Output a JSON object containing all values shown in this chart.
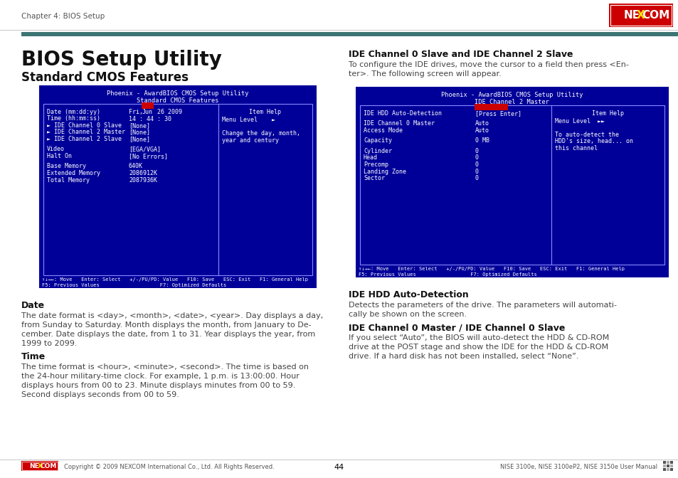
{
  "page_bg": "#ffffff",
  "header_text": "Chapter 4: BIOS Setup",
  "footer_center": "44",
  "footer_left": "Copyright © 2009 NEXCOM International Co., Ltd. All Rights Reserved.",
  "footer_right": "NISE 3100e, NISE 3100eP2, NISE 3150e User Manual",
  "title_main": "BIOS Setup Utility",
  "title_sub": "Standard CMOS Features",
  "divider_color": "#4a7c7c",
  "left_screen": {
    "header1": "Phoenix - AwardBIOS CMOS Setup Utility",
    "header2": "Standard CMOS Features",
    "rows": [
      [
        "Date (mm:dd:yy)",
        "Fri, Jun 26 2009"
      ],
      [
        "Time (hh:mm:ss)",
        "14 : 44 : 30"
      ],
      [
        "► IDE Channel 0 Slave",
        "[None]"
      ],
      [
        "► IDE Channel 2 Master",
        "[None]"
      ],
      [
        "► IDE Channel 2 Slave",
        "[None]"
      ],
      [
        "",
        ""
      ],
      [
        "Video",
        "[EGA/VGA]"
      ],
      [
        "Halt On",
        "[No Errors]"
      ],
      [
        "",
        ""
      ],
      [
        "Base Memory",
        "640K"
      ],
      [
        "Extended Memory",
        "2086912K"
      ],
      [
        "Total Memory",
        "2087936K"
      ]
    ],
    "help_title": "Item Help",
    "help_lines": [
      "Menu Level    ►",
      "",
      "Change the day, month,",
      "year and century"
    ],
    "footer1": "↑↓→←: Move   Enter: Select   +/-/PU/PD: Value   F10: Save   ESC: Exit   F1: General Help",
    "footer2": "F5: Previous Values                    F7: Optimized Defaults"
  },
  "right_title": "IDE Channel 0 Slave and IDE Channel 2 Slave",
  "right_para1": "To configure the IDE drives, move the cursor to a field then press <En-\nter>. The following screen will appear.",
  "right_screen": {
    "header1": "Phoenix - AwardBIOS CMOS Setup Utility",
    "header2": "IDE Channel 2 Master",
    "rows": [
      [
        "IDE HDD Auto-Detection",
        "[Press Enter]"
      ],
      [
        "",
        ""
      ],
      [
        "IDE Channel 0 Master",
        "Auto"
      ],
      [
        "Access Mode",
        "Auto"
      ],
      [
        "",
        ""
      ],
      [
        "Capacity",
        "0 MB"
      ],
      [
        "",
        ""
      ],
      [
        "Cylinder",
        "0"
      ],
      [
        "Head",
        "0"
      ],
      [
        "Precomp",
        "0"
      ],
      [
        "Landing Zone",
        "0"
      ],
      [
        "Sector",
        "0"
      ]
    ],
    "help_title": "Item Help",
    "help_lines": [
      "Menu Level  ►►",
      "",
      "To auto-detect the",
      "HDD's size, head... on",
      "this channel"
    ],
    "footer1": "↑↓→←: Move   Enter: Select   +/-/PU/PD: Value   F10: Save   ESC: Exit   F1: General Help",
    "footer2": "F5: Previous Values                  F7: Optimized Defaults"
  },
  "section_date": "Date",
  "para_date": "The date format is <day>, <month>, <date>, <year>. Day displays a day,\nfrom Sunday to Saturday. Month displays the month, from January to De-\ncember. Date displays the date, from 1 to 31. Year displays the year, from\n1999 to 2099.",
  "section_time": "Time",
  "para_time": "The time format is <hour>, <minute>, <second>. The time is based on\nthe 24-hour military-time clock. For example, 1 p.m. is 13:00:00. Hour\ndisplays hours from 00 to 23. Minute displays minutes from 00 to 59.\nSecond displays seconds from 00 to 59.",
  "section_hdd": "IDE HDD Auto-Detection",
  "para_hdd": "Detects the parameters of the drive. The parameters will automati-\ncally be shown on the screen.",
  "section_ide": "IDE Channel 0 Master / IDE Channel 0 Slave",
  "para_ide": "If you select “Auto”, the BIOS will auto-detect the HDD & CD-ROM\ndrive at the POST stage and show the IDE for the HDD & CD-ROM\ndrive. If a hard disk has not been installed, select “None”."
}
